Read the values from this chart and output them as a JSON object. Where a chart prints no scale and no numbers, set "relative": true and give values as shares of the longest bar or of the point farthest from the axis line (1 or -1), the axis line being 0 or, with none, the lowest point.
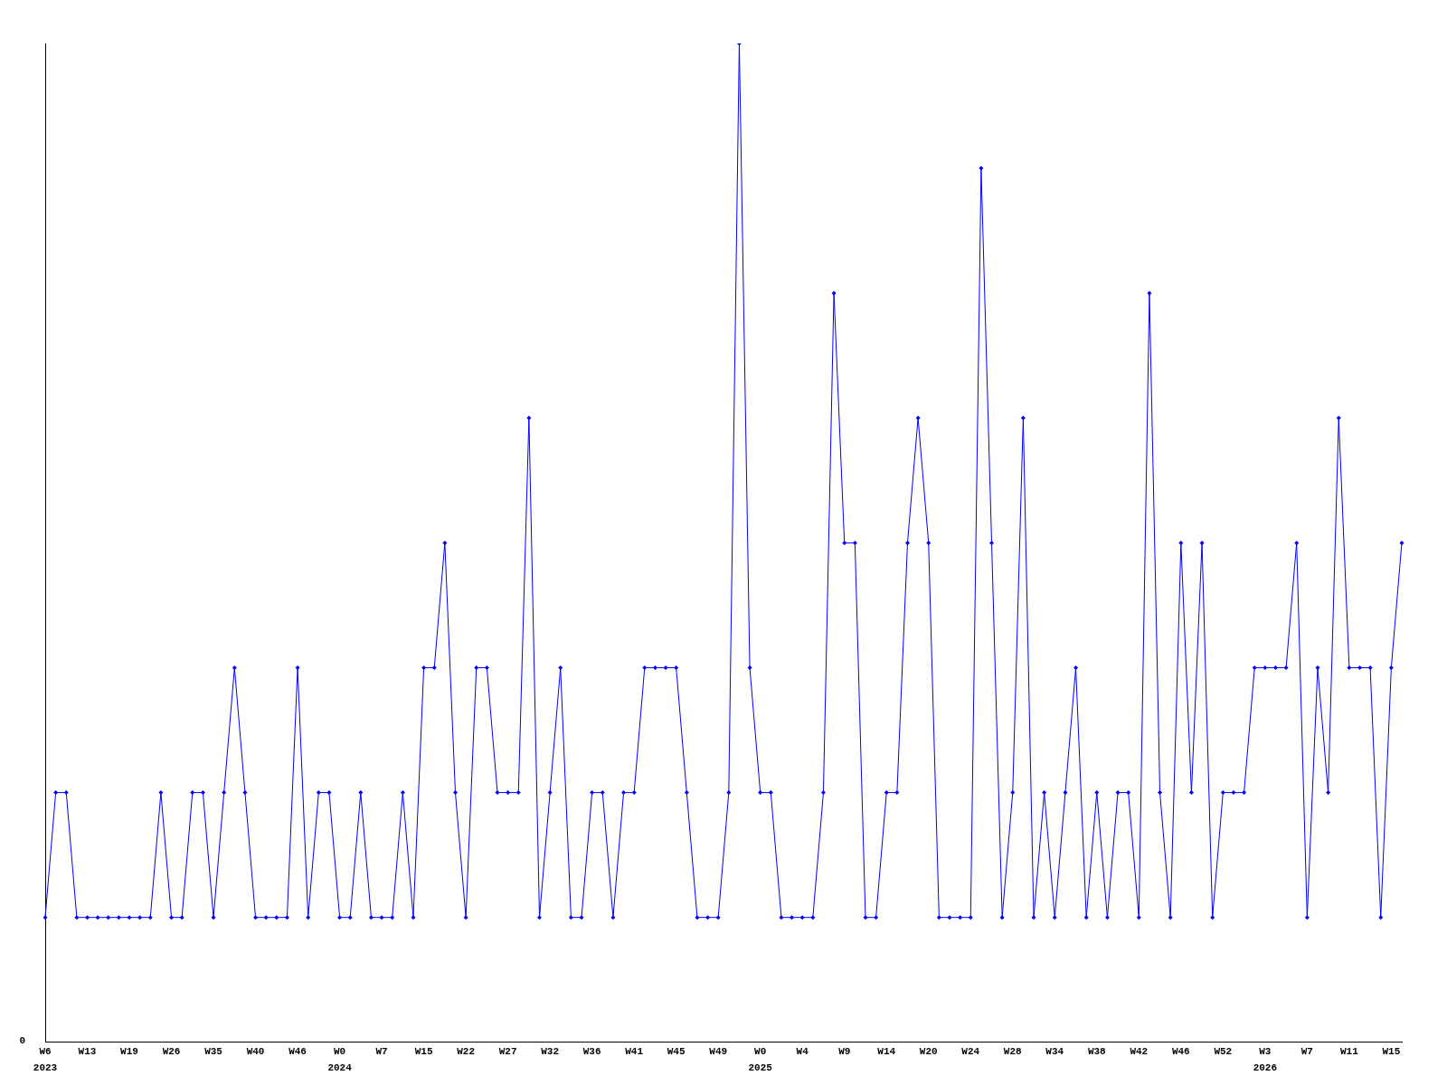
{
  "chart_data": {
    "type": "line",
    "relative": true,
    "grid": false,
    "legend": false,
    "marker": "diamond",
    "line_style": "solid",
    "categories": [
      "W6",
      null,
      null,
      null,
      "W13",
      null,
      null,
      null,
      "W19",
      null,
      null,
      null,
      "W26",
      null,
      null,
      null,
      "W35",
      null,
      null,
      null,
      "W40",
      null,
      null,
      null,
      "W46",
      null,
      null,
      null,
      "W0",
      null,
      null,
      null,
      "W7",
      null,
      null,
      null,
      "W15",
      null,
      null,
      null,
      "W22",
      null,
      null,
      null,
      "W27",
      null,
      null,
      null,
      "W32",
      null,
      null,
      null,
      "W36",
      null,
      null,
      null,
      "W41",
      null,
      null,
      null,
      "W45",
      null,
      null,
      null,
      "W49",
      null,
      null,
      null,
      "W0",
      null,
      null,
      null,
      "W4",
      null,
      null,
      null,
      "W9",
      null,
      null,
      null,
      "W14",
      null,
      null,
      null,
      "W20",
      null,
      null,
      null,
      "W24",
      null,
      null,
      null,
      "W28",
      null,
      null,
      null,
      "W34",
      null,
      null,
      null,
      "W38",
      null,
      null,
      null,
      "W42",
      null,
      null,
      null,
      "W46",
      null,
      null,
      null,
      "W52",
      null,
      null,
      null,
      "W3",
      null,
      null,
      null,
      "W7",
      null,
      null,
      null,
      "W11",
      null,
      null,
      null,
      "W15",
      null
    ],
    "annotations": [
      "0",
      "2023",
      "2024",
      "2025",
      "2026"
    ],
    "series": [
      {
        "color": "#0000ff",
        "values": [
          0.125,
          0.25,
          0.25,
          0.125,
          0.125,
          0.125,
          0.125,
          0.125,
          0.125,
          0.125,
          0.125,
          0.25,
          0.125,
          0.125,
          0.25,
          0.25,
          0.125,
          0.25,
          0.375,
          0.25,
          0.125,
          0.125,
          0.125,
          0.125,
          0.375,
          0.125,
          0.25,
          0.25,
          0.125,
          0.125,
          0.25,
          0.125,
          0.125,
          0.125,
          0.25,
          0.125,
          0.375,
          0.375,
          0.5,
          0.25,
          0.125,
          0.375,
          0.375,
          0.25,
          0.25,
          0.25,
          0.625,
          0.125,
          0.25,
          0.375,
          0.125,
          0.125,
          0.25,
          0.25,
          0.125,
          0.25,
          0.25,
          0.375,
          0.375,
          0.375,
          0.375,
          0.25,
          0.125,
          0.125,
          0.125,
          0.25,
          1,
          0.375,
          0.25,
          0.25,
          0.125,
          0.125,
          0.125,
          0.125,
          0.25,
          0.75,
          0.5,
          0.5,
          0.125,
          0.125,
          0.25,
          0.25,
          0.5,
          0.625,
          0.5,
          0.125,
          0.125,
          0.125,
          0.125,
          0.875,
          0.5,
          0.125,
          0.25,
          0.625,
          0.125,
          0.25,
          0.125,
          0.25,
          0.375,
          0.125,
          0.25,
          0.125,
          0.25,
          0.25,
          0.125,
          0.75,
          0.25,
          0.125,
          0.5,
          0.25,
          0.5,
          0.125,
          0.25,
          0.25,
          0.25,
          0.375,
          0.375,
          0.375,
          0.375,
          0.5,
          0.125,
          0.375,
          0.25,
          0.625,
          0.375,
          0.375,
          0.375,
          0.125,
          0.375,
          0.5
        ]
      }
    ]
  }
}
